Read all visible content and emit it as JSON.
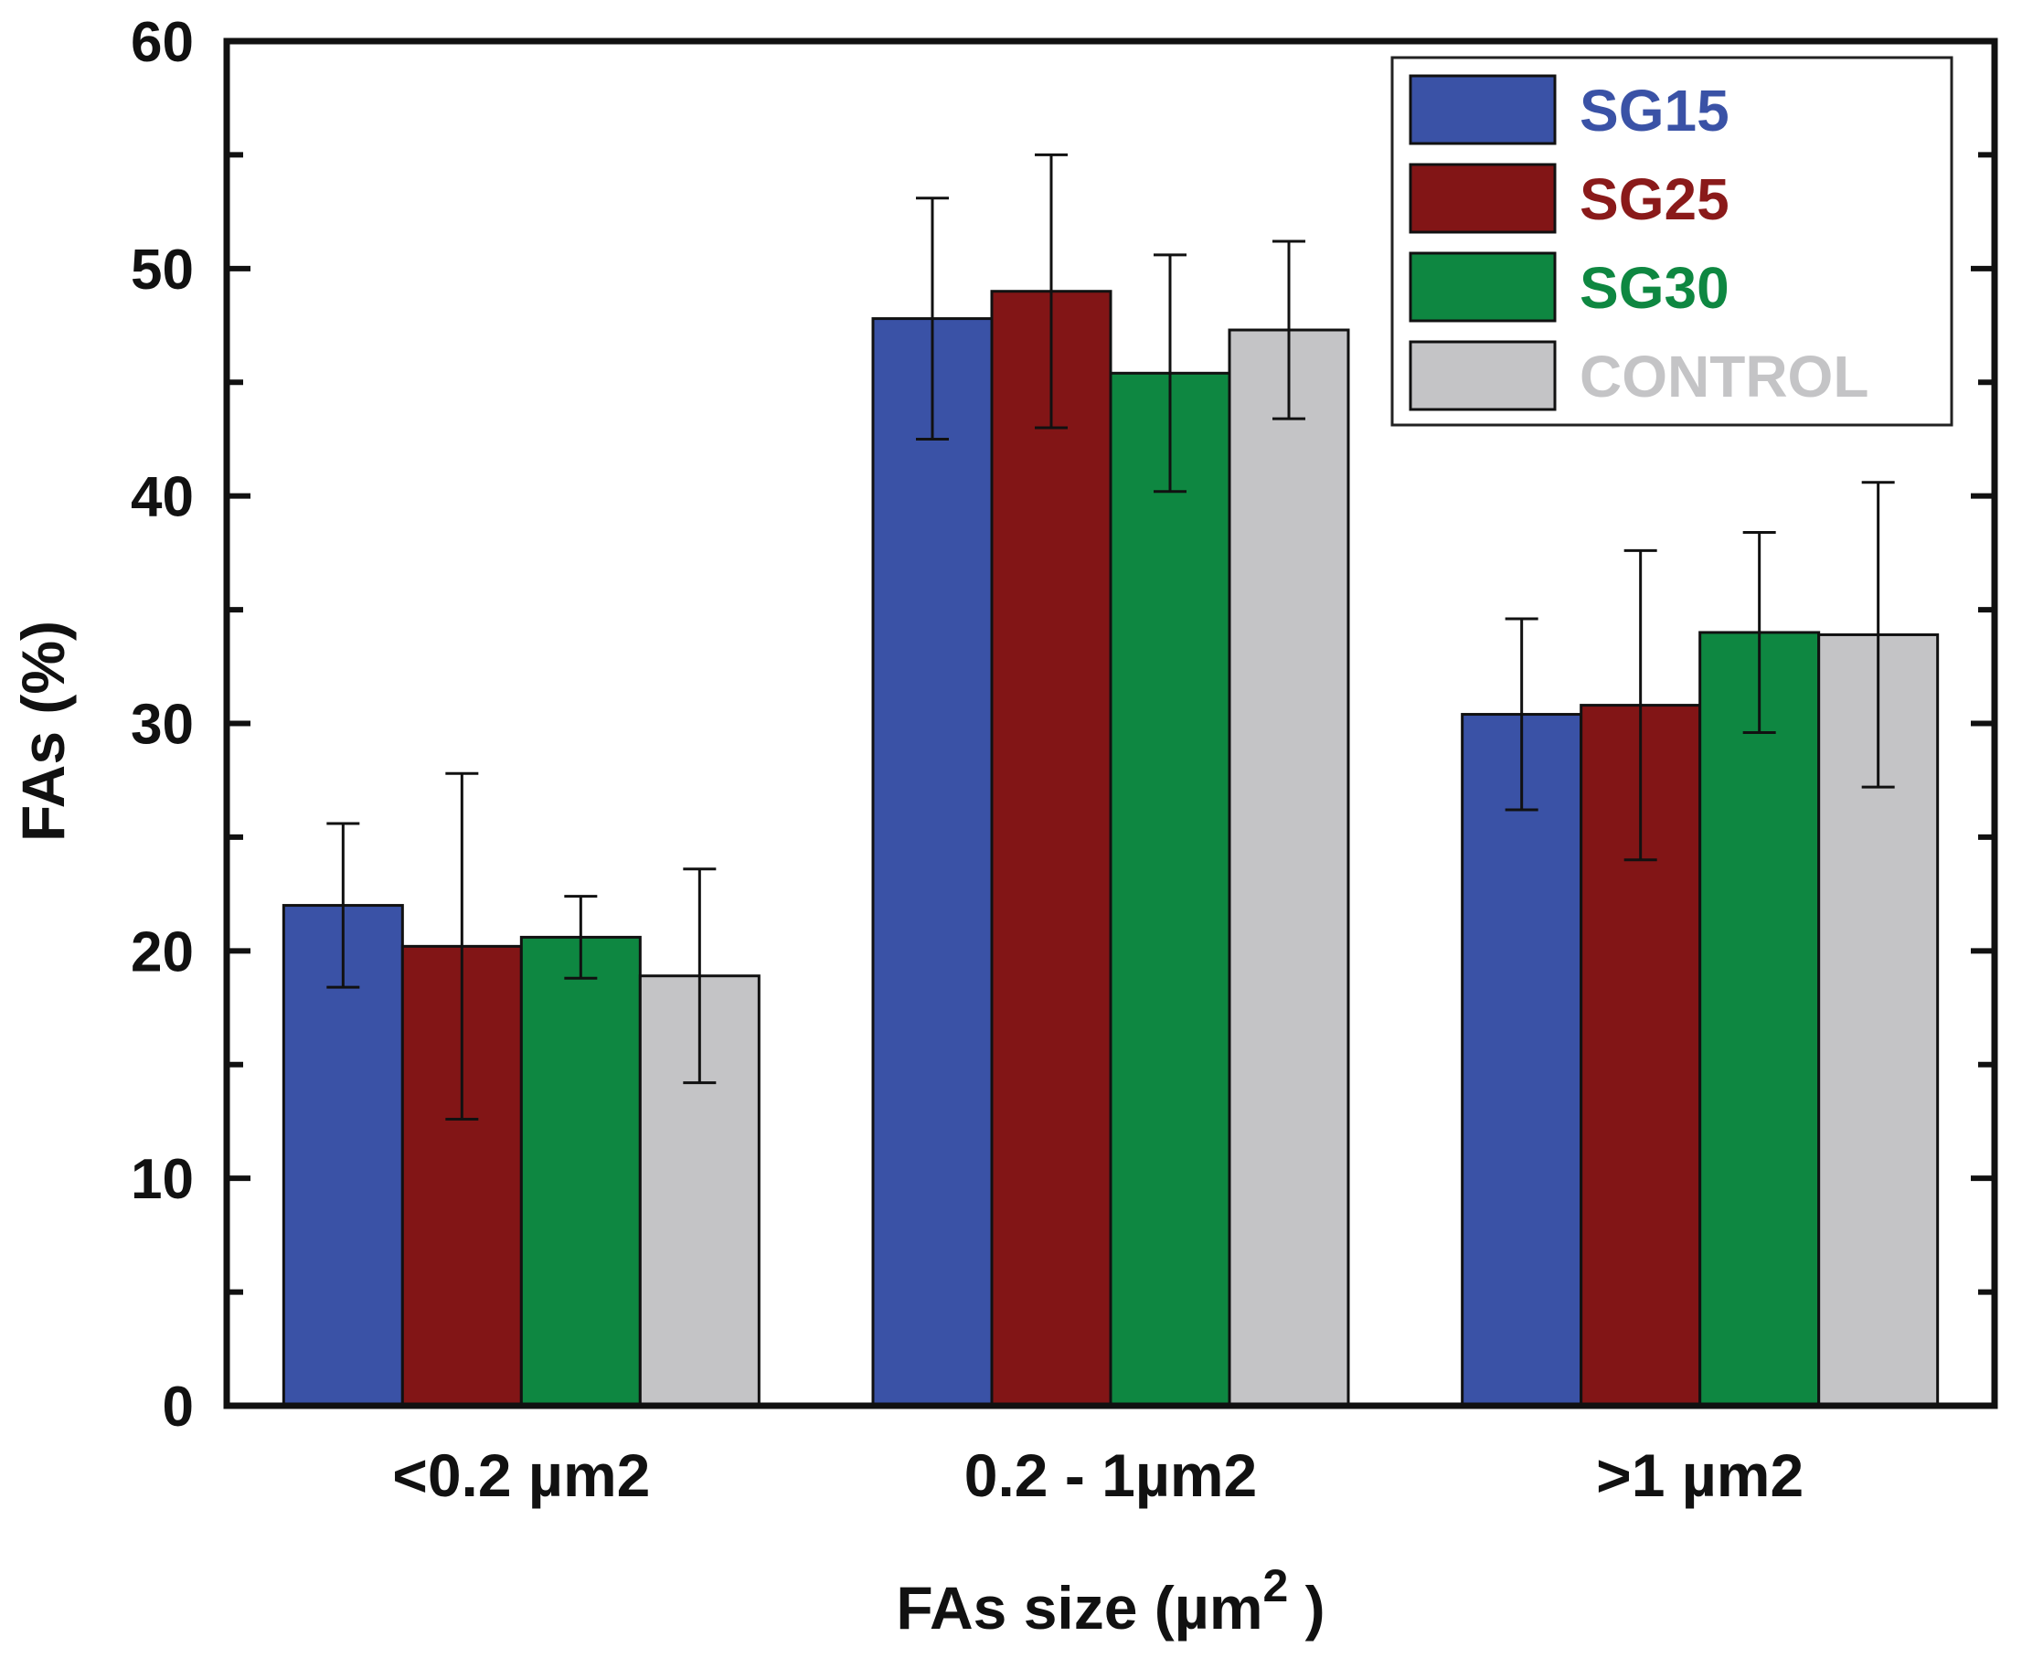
{
  "chart_data": {
    "type": "bar",
    "title": "",
    "xlabel": "FAs size (µm",
    "xlabel_superscript": "2",
    "xlabel_close": " )",
    "ylabel": "FAs (%)",
    "ylim": [
      0,
      60
    ],
    "yticks": [
      "0",
      "10",
      "20",
      "30",
      "40",
      "50",
      "60"
    ],
    "categories": [
      "<0.2 µm2",
      "0.2 - 1µm2",
      ">1 µm2"
    ],
    "legend_position": "top-right",
    "series": [
      {
        "name": "SG15",
        "color": "#3a52a6",
        "text_color": "#3a52a6",
        "values": [
          22.0,
          47.8,
          30.4
        ],
        "errors": [
          3.6,
          5.3,
          4.2
        ]
      },
      {
        "name": "SG25",
        "color": "#821516",
        "text_color": "#8a1a1a",
        "values": [
          20.2,
          49.0,
          30.8
        ],
        "errors": [
          7.6,
          6.0,
          6.8
        ]
      },
      {
        "name": "SG30",
        "color": "#0e8741",
        "text_color": "#0e8741",
        "values": [
          20.6,
          45.4,
          34.0
        ],
        "errors": [
          1.8,
          5.2,
          4.4
        ]
      },
      {
        "name": "CONTROL",
        "color": "#c4c4c6",
        "text_color": "#c4c4c6",
        "values": [
          18.9,
          47.3,
          33.9
        ],
        "errors": [
          4.7,
          3.9,
          6.7
        ]
      }
    ]
  }
}
